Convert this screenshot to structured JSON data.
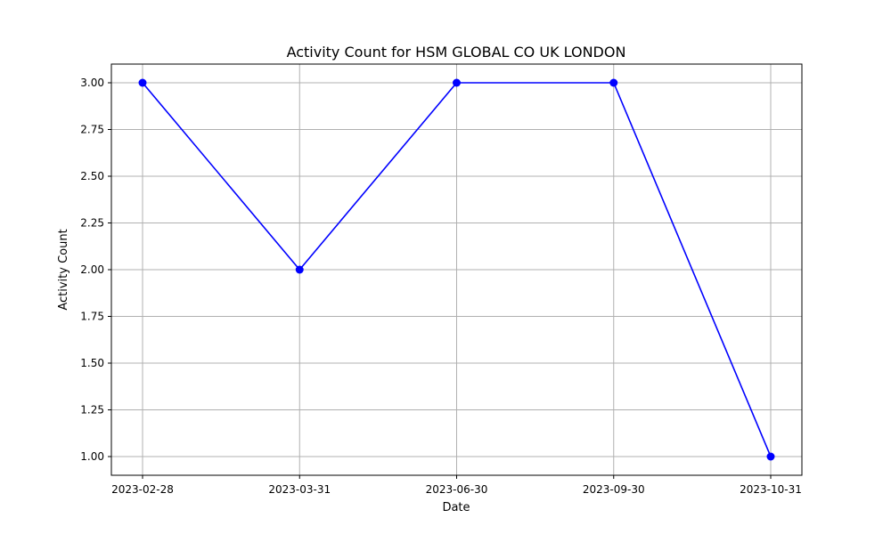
{
  "chart_data": {
    "type": "line",
    "title": "Activity Count for HSM GLOBAL CO UK LONDON",
    "xlabel": "Date",
    "ylabel": "Activity Count",
    "x": [
      "2023-02-28",
      "2023-03-31",
      "2023-06-30",
      "2023-09-30",
      "2023-10-31"
    ],
    "series": [
      {
        "values": [
          3,
          2,
          3,
          3,
          1
        ],
        "color": "#0000ff",
        "marker": "circle"
      }
    ],
    "ylim": [
      0.9,
      3.1
    ],
    "yticks": [
      1.0,
      1.25,
      1.5,
      1.75,
      2.0,
      2.25,
      2.5,
      2.75,
      3.0
    ],
    "ytick_labels": [
      "1.00",
      "1.25",
      "1.50",
      "1.75",
      "2.00",
      "2.25",
      "2.50",
      "2.75",
      "3.00"
    ],
    "grid": true,
    "x_spacing": "categorical"
  }
}
